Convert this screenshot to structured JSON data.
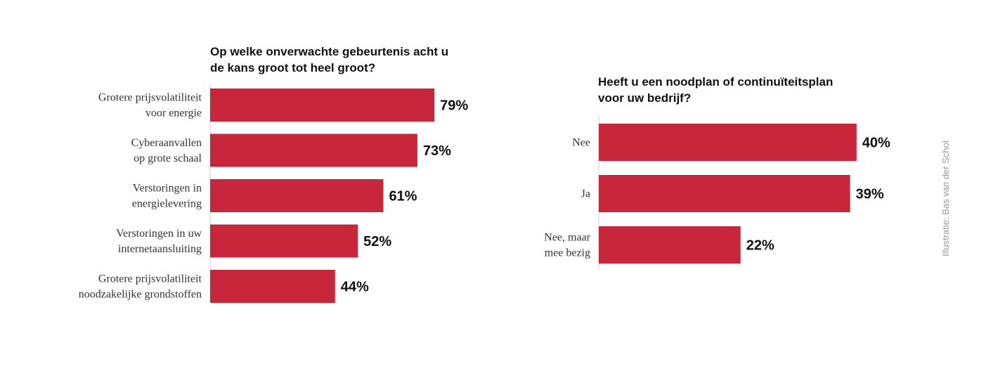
{
  "colors": {
    "bar": "#c8263a",
    "axis": "#cfcfcf",
    "text": "#111111"
  },
  "credit": "Illustratie: Bas van der Schot",
  "chart_data": [
    {
      "type": "bar",
      "orientation": "horizontal",
      "title_lines": [
        "Op welke onverwachte gebeurtenis acht u",
        "de kans groot tot heel groot?"
      ],
      "categories": [
        [
          "Grotere prijsvolatiliteit",
          "voor energie"
        ],
        [
          "Cyberaanvallen",
          "op grote schaal"
        ],
        [
          "Verstoringen in",
          "energielevering"
        ],
        [
          "Verstoringen in uw",
          "internetaansluiting"
        ],
        [
          "Grotere prijsvolatiliteit",
          "noodzakelijke grondstoffen"
        ]
      ],
      "values": [
        79,
        73,
        61,
        52,
        44
      ],
      "value_labels": [
        "79%",
        "73%",
        "61%",
        "52%",
        "44%"
      ],
      "unit": "%",
      "grid": false,
      "legend": "none"
    },
    {
      "type": "bar",
      "orientation": "horizontal",
      "title_lines": [
        "Heeft u een noodplan of continuïteitsplan",
        "voor uw bedrijf?"
      ],
      "categories": [
        [
          "Nee"
        ],
        [
          "Ja"
        ],
        [
          "Nee, maar",
          "mee bezig"
        ]
      ],
      "values": [
        40,
        39,
        22
      ],
      "value_labels": [
        "40%",
        "39%",
        "22%"
      ],
      "unit": "%",
      "grid": false,
      "legend": "none"
    }
  ]
}
